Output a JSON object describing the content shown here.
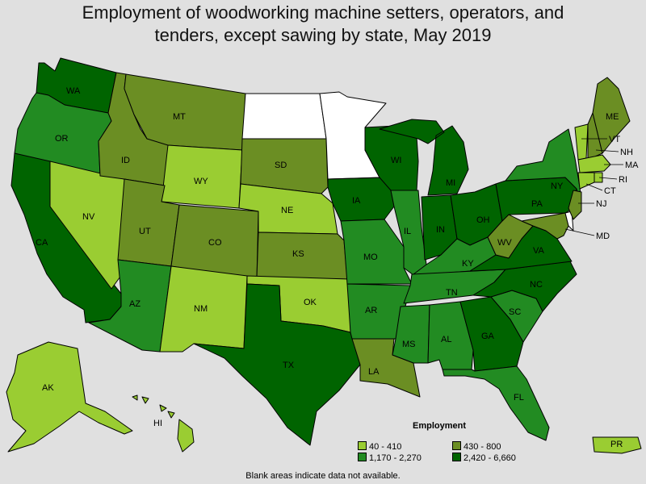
{
  "title_line1": "Employment of woodworking machine setters, operators, and",
  "title_line2": "tenders, except sawing by state, May 2019",
  "legend": {
    "title": "Employment",
    "items": [
      {
        "label": "40 - 410",
        "color": "#9acd32"
      },
      {
        "label": "430 - 800",
        "color": "#6b8e23"
      },
      {
        "label": "1,170 - 2,270",
        "color": "#228b22"
      },
      {
        "label": "2,420 - 6,660",
        "color": "#006400"
      }
    ]
  },
  "note": "Blank areas indicate data not available.",
  "colors": {
    "no_data": "#ffffff",
    "background": "#e0e0e0"
  },
  "states": {
    "WA": "2,420 - 6,660",
    "OR": "1,170 - 2,270",
    "CA": "2,420 - 6,660",
    "NV": "40 - 410",
    "ID": "430 - 800",
    "MT": "430 - 800",
    "WY": "40 - 410",
    "UT": "430 - 800",
    "AZ": "1,170 - 2,270",
    "CO": "430 - 800",
    "NM": "40 - 410",
    "ND": "no data",
    "SD": "430 - 800",
    "NE": "40 - 410",
    "KS": "430 - 800",
    "OK": "40 - 410",
    "TX": "2,420 - 6,660",
    "MN": "no data",
    "IA": "2,420 - 6,660",
    "MO": "1,170 - 2,270",
    "AR": "1,170 - 2,270",
    "LA": "430 - 800",
    "WI": "2,420 - 6,660",
    "IL": "1,170 - 2,270",
    "MI": "2,420 - 6,660",
    "IN": "2,420 - 6,660",
    "OH": "2,420 - 6,660",
    "KY": "1,170 - 2,270",
    "TN": "1,170 - 2,270",
    "MS": "1,170 - 2,270",
    "AL": "1,170 - 2,270",
    "GA": "2,420 - 6,660",
    "FL": "1,170 - 2,270",
    "SC": "1,170 - 2,270",
    "NC": "2,420 - 6,660",
    "VA": "2,420 - 6,660",
    "WV": "430 - 800",
    "PA": "2,420 - 6,660",
    "NY": "1,170 - 2,270",
    "VT": "40 - 410",
    "NH": "430 - 800",
    "ME": "430 - 800",
    "MA": "40 - 410",
    "RI": "40 - 410",
    "CT": "40 - 410",
    "NJ": "430 - 800",
    "DE": "no data",
    "MD": "430 - 800",
    "AK": "40 - 410",
    "HI": "40 - 410",
    "PR": "40 - 410"
  }
}
